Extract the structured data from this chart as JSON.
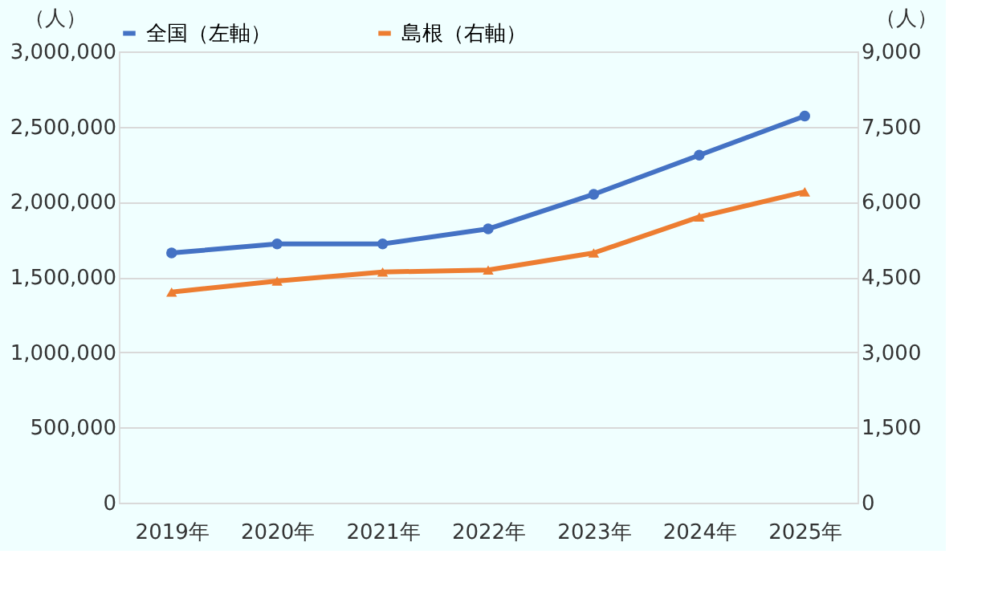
{
  "chart_data": {
    "type": "line",
    "ylabel": "（人）",
    "y2label": "（人）",
    "categories": [
      "2019年",
      "2020年",
      "2021年",
      "2022年",
      "2023年",
      "2024年",
      "2025年"
    ],
    "series": [
      {
        "name": "全国（左軸）",
        "color": "#4472c4",
        "marker": "circle",
        "values": [
          1660000,
          1720000,
          1720000,
          1820000,
          2050000,
          2310000,
          2570000
        ]
      },
      {
        "name": "島根（右軸）",
        "color": "#ed7d31",
        "marker": "triangle",
        "axis": "y2",
        "values": [
          4200,
          4420,
          4600,
          4640,
          4980,
          5700,
          6200
        ]
      }
    ],
    "ylim": [
      0,
      3000000
    ],
    "yticks": [
      0,
      {
        "value": 500000,
        "label": "500,000"
      },
      {
        "value": 1000000,
        "label": "1,000,000"
      },
      {
        "value": 1500000,
        "label": "1,500,000"
      },
      {
        "value": 2000000,
        "label": "2,000,000"
      },
      {
        "value": 2500000,
        "label": "2,500,000"
      },
      {
        "value": 3000000,
        "label": "3,000,000"
      }
    ],
    "y2lim": [
      0,
      9000
    ],
    "y2ticks": [
      0,
      {
        "value": 1500,
        "label": "1,500"
      },
      {
        "value": 3000,
        "label": "3,000"
      },
      {
        "value": 4500,
        "label": "4,500"
      },
      {
        "value": 6000,
        "label": "6,000"
      },
      {
        "value": 7500,
        "label": "7,500"
      },
      {
        "value": 9000,
        "label": "9,000"
      }
    ],
    "grid": "y",
    "legend": "top"
  }
}
